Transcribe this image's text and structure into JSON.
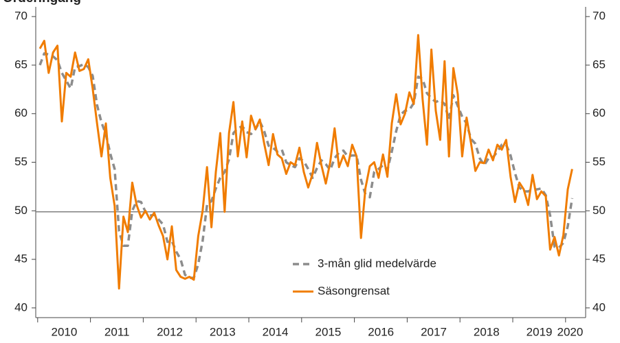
{
  "chart_data": {
    "type": "line",
    "title": "Orderingång",
    "categories": [
      null,
      null,
      null,
      null,
      null,
      null,
      "2010",
      null,
      null,
      null,
      null,
      null,
      null,
      null,
      null,
      null,
      null,
      null,
      "2011",
      null,
      null,
      null,
      null,
      null,
      null,
      null,
      null,
      null,
      null,
      null,
      "2012",
      null,
      null,
      null,
      null,
      null,
      null,
      null,
      null,
      null,
      null,
      null,
      "2013",
      null,
      null,
      null,
      null,
      null,
      null,
      null,
      null,
      null,
      null,
      null,
      "2014",
      null,
      null,
      null,
      null,
      null,
      null,
      null,
      null,
      null,
      null,
      null,
      "2015",
      null,
      null,
      null,
      null,
      null,
      null,
      null,
      null,
      null,
      null,
      null,
      "2016",
      null,
      null,
      null,
      null,
      null,
      null,
      null,
      null,
      null,
      null,
      null,
      "2017",
      null,
      null,
      null,
      null,
      null,
      null,
      null,
      null,
      null,
      null,
      null,
      "2018",
      null,
      null,
      null,
      null,
      null,
      null,
      null,
      null,
      null,
      null,
      null,
      "2019",
      null,
      null,
      null,
      null,
      null,
      null,
      "2020"
    ],
    "series": [
      {
        "name": "3-mån glid medelvärde",
        "color": "#8c8c8c",
        "dashed": true,
        "values": [
          65.0,
          66.2,
          66.1,
          65.9,
          65.5,
          64.2,
          63.4,
          62.6,
          64.8,
          64.9,
          65.1,
          64.8,
          63.9,
          60.9,
          59.1,
          57.9,
          55.9,
          54.3,
          47.9,
          46.4,
          46.4,
          50.0,
          51.0,
          50.9,
          49.9,
          49.5,
          49.6,
          49.1,
          48.6,
          46.8,
          46.9,
          45.8,
          45.0,
          43.4,
          43.1,
          43.1,
          44.5,
          46.9,
          50.6,
          51.0,
          52.3,
          53.4,
          54.0,
          55.3,
          58.0,
          58.5,
          58.7,
          58.1,
          57.9,
          58.4,
          59.2,
          58.2,
          56.7,
          56.5,
          56.1,
          56.3,
          55.0,
          54.7,
          54.5,
          55.4,
          55.1,
          54.3,
          53.4,
          54.4,
          55.2,
          54.8,
          54.2,
          55.4,
          56.0,
          56.2,
          55.6,
          55.7,
          55.7,
          53.2,
          51.7,
          51.4,
          54.0,
          54.3,
          54.7,
          54.2,
          56.1,
          58.2,
          59.9,
          60.3,
          60.4,
          61.1,
          63.8,
          63.6,
          62.1,
          61.6,
          61.2,
          61.4,
          61.0,
          59.4,
          61.9,
          60.8,
          59.7,
          59.0,
          57.4,
          56.9,
          55.4,
          54.7,
          55.4,
          55.5,
          56.1,
          56.8,
          56.8,
          55.7,
          53.9,
          52.4,
          52.0,
          52.0,
          52.2,
          52.2,
          52.3,
          51.6,
          49.5,
          46.3,
          46.2,
          46.7,
          48.4,
          51.3
        ]
      },
      {
        "name": "Säsongrensat",
        "color": "#f07c00",
        "dashed": false,
        "values": [
          66.7,
          67.5,
          64.2,
          66.3,
          67.0,
          59.2,
          64.2,
          63.8,
          66.3,
          64.4,
          64.6,
          65.6,
          62.6,
          59.0,
          55.6,
          59.0,
          53.4,
          50.5,
          42.0,
          49.4,
          47.8,
          52.9,
          50.6,
          49.3,
          50.0,
          49.1,
          49.8,
          48.5,
          47.4,
          45.0,
          48.4,
          43.9,
          43.2,
          43.0,
          43.2,
          42.9,
          47.4,
          50.0,
          54.5,
          48.3,
          54.0,
          58.0,
          49.9,
          58.0,
          61.2,
          55.6,
          59.2,
          55.5,
          59.8,
          58.4,
          59.4,
          56.9,
          54.7,
          57.9,
          55.8,
          55.4,
          53.8,
          55.0,
          54.7,
          56.5,
          54.0,
          52.4,
          53.8,
          57.0,
          54.7,
          52.8,
          55.0,
          58.5,
          54.5,
          55.7,
          54.6,
          56.8,
          55.6,
          47.2,
          52.3,
          54.6,
          55.0,
          53.4,
          55.8,
          53.5,
          59.0,
          62.0,
          58.9,
          60.0,
          62.2,
          61.0,
          68.1,
          61.5,
          56.8,
          66.6,
          60.3,
          57.3,
          65.4,
          55.6,
          64.7,
          62.0,
          55.6,
          59.6,
          57.0,
          54.1,
          55.0,
          54.9,
          56.3,
          55.2,
          56.8,
          56.3,
          57.3,
          53.5,
          50.9,
          52.9,
          52.2,
          50.6,
          53.7,
          51.2,
          52.0,
          51.5,
          46.0,
          47.3,
          45.4,
          47.5,
          52.2,
          54.3
        ]
      }
    ],
    "ylim": [
      39,
      71
    ],
    "yticks": [
      40,
      45,
      50,
      55,
      60,
      65,
      70
    ],
    "y2lim": [
      39,
      71
    ],
    "y2ticks": [
      40,
      45,
      50,
      55,
      60,
      65,
      70
    ],
    "reference_line": 49.9,
    "reference_color": "#7f7f7f",
    "legend": "lower center",
    "grid": false
  }
}
